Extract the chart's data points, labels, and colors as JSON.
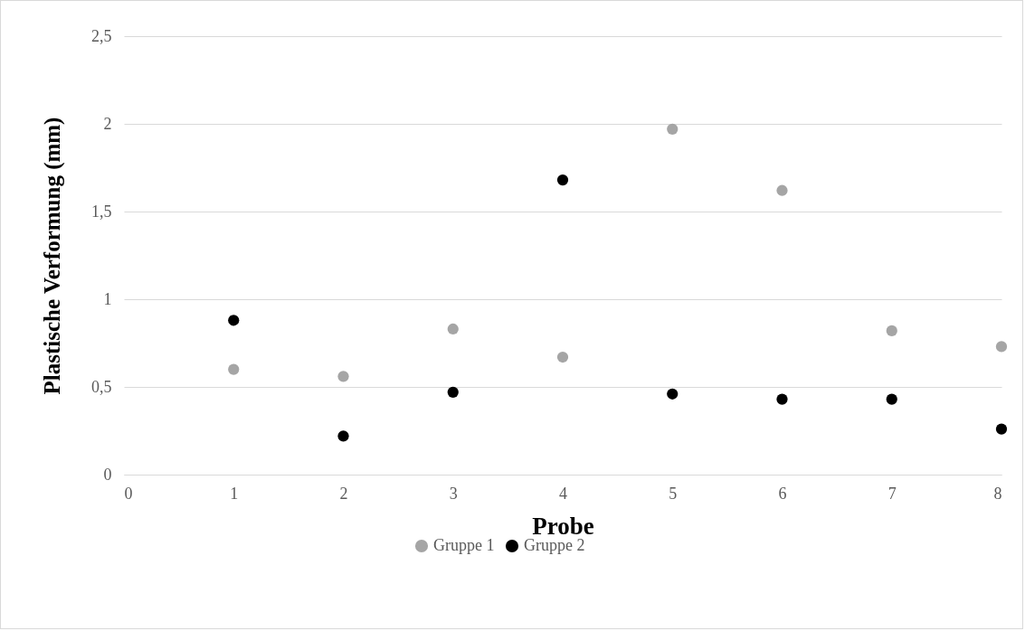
{
  "chart_data": {
    "type": "scatter",
    "xlabel": "Probe",
    "ylabel": "Plastische Verformung (mm)",
    "xlim": [
      0,
      8
    ],
    "xticks": [
      0,
      1,
      2,
      3,
      4,
      5,
      6,
      7,
      8
    ],
    "ylim": [
      0,
      2.5
    ],
    "yticks": [
      0,
      {
        "value": 0.5,
        "label": "0,5"
      },
      1,
      {
        "value": 1.5,
        "label": "1,5"
      },
      2,
      {
        "value": 2.5,
        "label": "2,5"
      }
    ],
    "x": [
      1,
      2,
      3,
      4,
      5,
      6,
      7,
      8
    ],
    "series": [
      {
        "name": "Gruppe 1",
        "color": "#a5a5a5",
        "values": [
          0.6,
          0.56,
          0.83,
          0.67,
          1.97,
          1.62,
          0.82,
          0.73
        ]
      },
      {
        "name": "Gruppe 2",
        "color": "#000000",
        "values": [
          0.88,
          0.22,
          0.47,
          1.68,
          0.46,
          0.43,
          0.43,
          0.26
        ]
      }
    ],
    "grid": "y",
    "legend": "bottom",
    "marker": "circle"
  }
}
